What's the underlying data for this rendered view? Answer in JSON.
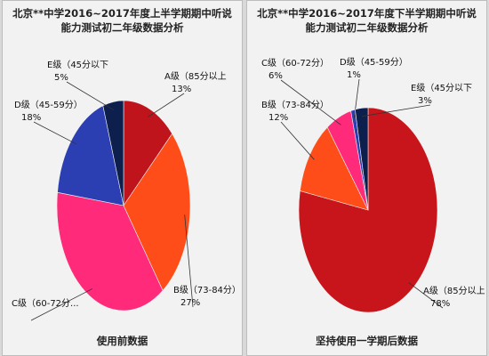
{
  "chart_data": [
    {
      "type": "pie",
      "title_lines": [
        "北京**中学2016~2017年度上半学期期中听说",
        "能力测试初二年级数据分析"
      ],
      "footer": "使用前数据",
      "slices": [
        {
          "label": "A级（85分以上",
          "pct_label": "13%",
          "value": 13,
          "color": "#c0141c"
        },
        {
          "label": "B级（73-84分）",
          "pct_label": "27%",
          "value": 27,
          "color": "#ff4d1a"
        },
        {
          "label": "C级（60-72分...",
          "pct_label": "",
          "value": 37,
          "color": "#ff2a7a"
        },
        {
          "label": "D级（45-59分）",
          "pct_label": "18%",
          "value": 18,
          "color": "#2b3fb3"
        },
        {
          "label": "E级（45分以下",
          "pct_label": "5%",
          "value": 5,
          "color": "#0d1f4d"
        }
      ]
    },
    {
      "type": "pie",
      "title_lines": [
        "北京**中学2016~2017年度下半学期期中听说",
        "能力测试初二年级数据分析"
      ],
      "footer": "坚持使用一学期后数据",
      "slices": [
        {
          "label": "A级（85分以上",
          "pct_label": "78%",
          "value": 78,
          "color": "#c8151b"
        },
        {
          "label": "B级（73-84分）",
          "pct_label": "12%",
          "value": 12,
          "color": "#ff4d1a"
        },
        {
          "label": "C级（60-72分）",
          "pct_label": "6%",
          "value": 6,
          "color": "#ff2a7a"
        },
        {
          "label": "D级（45-59分）",
          "pct_label": "1%",
          "value": 1,
          "color": "#2b3fb3"
        },
        {
          "label": "E级（45分以下",
          "pct_label": "3%",
          "value": 3,
          "color": "#0d1f4d"
        }
      ]
    }
  ]
}
